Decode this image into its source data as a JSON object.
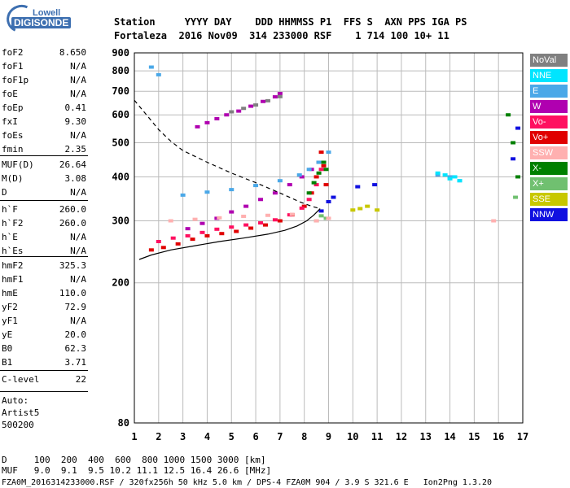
{
  "logo": {
    "line1": "Lowell",
    "line2": "DIGISONDE"
  },
  "header": {
    "labels": "Station     YYYY DAY    DDD HHMMSS P1  FFS S  AXN PPS IGA PS",
    "values": "Fortaleza  2016 Nov09  314 233000 RSF    1 714 100 10+ 11"
  },
  "params": {
    "group1": [
      [
        "foF2",
        "8.650"
      ],
      [
        "foF1",
        "N/A"
      ],
      [
        "foF1p",
        "N/A"
      ],
      [
        "foE",
        "N/A"
      ],
      [
        "foEp",
        "0.41"
      ],
      [
        "fxI",
        "9.30"
      ],
      [
        "foEs",
        "N/A"
      ],
      [
        "fmin",
        "2.35"
      ]
    ],
    "group2": [
      [
        "MUF(D)",
        "26.64"
      ],
      [
        "M(D)",
        "3.08"
      ],
      [
        "D",
        "N/A"
      ]
    ],
    "group3": [
      [
        "h`F",
        "260.0"
      ],
      [
        "h`F2",
        "260.0"
      ],
      [
        "h`E",
        "N/A"
      ],
      [
        "h`Es",
        "N/A"
      ]
    ],
    "group4": [
      [
        "hmF2",
        "325.3"
      ],
      [
        "hmF1",
        "N/A"
      ],
      [
        "hmE",
        "110.0"
      ],
      [
        "yF2",
        "72.9"
      ],
      [
        "yF1",
        "N/A"
      ],
      [
        "yE",
        "20.0"
      ],
      [
        "B0",
        "62.3"
      ],
      [
        "B1",
        "3.71"
      ]
    ],
    "group5": [
      [
        "C-level",
        "22"
      ]
    ],
    "auto": [
      "Auto:",
      "Artist5",
      "500200"
    ]
  },
  "legend": [
    {
      "label": "NoVal",
      "color": "#808080"
    },
    {
      "label": "NNE",
      "color": "#00e5ff"
    },
    {
      "label": "E",
      "color": "#4aa8e8"
    },
    {
      "label": "W",
      "color": "#b000b0"
    },
    {
      "label": "Vo-",
      "color": "#ff1060"
    },
    {
      "label": "Vo+",
      "color": "#e00000"
    },
    {
      "label": "SSW",
      "color": "#ffb0b0"
    },
    {
      "label": "X-",
      "color": "#008000"
    },
    {
      "label": "X+",
      "color": "#70c070"
    },
    {
      "label": "SSE",
      "color": "#c8c800"
    },
    {
      "label": "NNW",
      "color": "#1010e0"
    }
  ],
  "footer": {
    "d_row": "D     100  200  400  600  800 1000 1500 3000 [km]",
    "muf_row": "MUF   9.0  9.1  9.5 10.2 11.1 12.5 16.4 26.6 [MHz]",
    "file_row": "FZA0M_2016314233000.RSF / 320fx256h 50 kHz 5.0 km / DPS-4 FZA0M 904 / 3.9 S 321.6 E   Ion2Png 1.3.20"
  },
  "chart_data": {
    "type": "scatter",
    "x_ticks": [
      1,
      2,
      3,
      4,
      5,
      6,
      7,
      8,
      9,
      10,
      11,
      12,
      13,
      14,
      15,
      16,
      17
    ],
    "y_ticks": [
      80,
      200,
      300,
      400,
      500,
      600,
      700,
      800,
      900
    ],
    "xlim": [
      1,
      17
    ],
    "ylim": [
      80,
      900
    ],
    "yscale": "log",
    "grid": true,
    "series": [
      {
        "name": "Vo+",
        "color": "#e00000",
        "x": [
          1.7,
          2.2,
          2.8,
          3.4,
          4.0,
          4.6,
          5.2,
          5.8,
          6.4,
          7.0,
          7.5,
          8.0,
          8.3,
          8.5,
          8.6,
          8.7,
          8.8,
          8.9
        ],
        "y": [
          248,
          252,
          258,
          266,
          272,
          276,
          280,
          286,
          292,
          300,
          312,
          330,
          360,
          400,
          440,
          470,
          430,
          380
        ]
      },
      {
        "name": "Vo-",
        "color": "#ff1060",
        "x": [
          2.0,
          2.6,
          3.2,
          3.8,
          4.4,
          5.0,
          5.6,
          6.2,
          6.8,
          7.4,
          7.9,
          8.2,
          8.5,
          8.7
        ],
        "y": [
          262,
          268,
          272,
          278,
          284,
          288,
          292,
          296,
          302,
          312,
          326,
          345,
          380,
          420
        ]
      },
      {
        "name": "W",
        "color": "#b000b0",
        "x": [
          3.2,
          3.8,
          4.4,
          5.0,
          5.6,
          6.2,
          6.8,
          7.4,
          7.9,
          8.3,
          3.6,
          4.0,
          4.4,
          4.8,
          5.3,
          5.8,
          6.3,
          6.8,
          7.0
        ],
        "y": [
          285,
          295,
          305,
          318,
          330,
          345,
          360,
          380,
          400,
          420,
          555,
          570,
          585,
          600,
          615,
          635,
          655,
          675,
          690
        ]
      },
      {
        "name": "E",
        "color": "#4aa8e8",
        "x": [
          1.7,
          2.0,
          3.0,
          4.0,
          5.0,
          6.0,
          7.0,
          7.8,
          8.2,
          8.6,
          9.0,
          13.5,
          14.0,
          14.4
        ],
        "y": [
          820,
          780,
          355,
          362,
          368,
          378,
          390,
          405,
          420,
          440,
          470,
          405,
          400,
          390
        ]
      },
      {
        "name": "X-",
        "color": "#008000",
        "x": [
          8.2,
          8.4,
          8.6,
          8.8,
          8.9,
          16.4,
          16.6,
          16.8
        ],
        "y": [
          360,
          385,
          410,
          440,
          420,
          600,
          500,
          400
        ]
      },
      {
        "name": "NNE",
        "color": "#00e5ff",
        "x": [
          13.5,
          13.8,
          14.0,
          14.2,
          14.4
        ],
        "y": [
          410,
          405,
          395,
          400,
          390
        ]
      },
      {
        "name": "SSE",
        "color": "#c8c800",
        "x": [
          10.0,
          10.3,
          10.6,
          11.0
        ],
        "y": [
          322,
          325,
          330,
          322
        ]
      },
      {
        "name": "NNW",
        "color": "#1010e0",
        "x": [
          8.7,
          9.0,
          9.2,
          10.2,
          10.9,
          16.6,
          16.8
        ],
        "y": [
          320,
          340,
          350,
          375,
          380,
          450,
          550
        ]
      },
      {
        "name": "X+",
        "color": "#70c070",
        "x": [
          8.5,
          8.7,
          8.9,
          16.7
        ],
        "y": [
          300,
          310,
          305,
          350
        ]
      },
      {
        "name": "SSW",
        "color": "#ffb0b0",
        "x": [
          2.5,
          3.5,
          4.5,
          5.5,
          6.5,
          7.5,
          8.5,
          9.0,
          15.8
        ],
        "y": [
          300,
          303,
          306,
          309,
          311,
          313,
          300,
          305,
          300
        ]
      },
      {
        "name": "NoVal",
        "color": "#808080",
        "x": [
          5.0,
          5.5,
          6.0,
          6.5,
          7.0
        ],
        "y": [
          612,
          626,
          640,
          658,
          676
        ]
      }
    ],
    "profile_solid": {
      "x": [
        1.2,
        1.7,
        2.5,
        3.5,
        4.5,
        5.5,
        6.5,
        7.2,
        7.7,
        8.1,
        8.4,
        8.6,
        8.65
      ],
      "y": [
        233,
        240,
        248,
        255,
        262,
        268,
        275,
        282,
        290,
        300,
        312,
        322,
        325
      ]
    },
    "profile_dashed": {
      "x": [
        1.0,
        1.5,
        2.0,
        2.5,
        3.0,
        4.0,
        5.0,
        6.0,
        7.0,
        7.8,
        8.3,
        8.65
      ],
      "y": [
        660,
        600,
        545,
        505,
        475,
        440,
        410,
        385,
        360,
        340,
        330,
        325
      ]
    }
  }
}
